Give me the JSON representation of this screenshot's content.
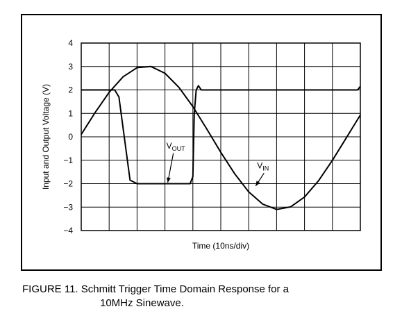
{
  "figure": {
    "caption_line1": "FIGURE 11. Schmitt Trigger Time Domain Response for a",
    "caption_line2": "10MHz Sinewave."
  },
  "chart_data": {
    "type": "line",
    "xlabel": "Time (10ns/div)",
    "ylabel": "Input and Output Voltage (V)",
    "ylim": [
      -4,
      4
    ],
    "y_ticks": [
      "4",
      "3",
      "2",
      "1",
      "0",
      "−1",
      "−2",
      "−3",
      "−4"
    ],
    "x_divisions": 10,
    "grid": true,
    "series": [
      {
        "name": "VIN",
        "label_main": "V",
        "label_sub": "IN",
        "color": "#000000",
        "x": [
          0,
          0.5,
          1,
          1.5,
          2,
          2.5,
          3,
          3.5,
          4,
          4.5,
          5,
          5.5,
          6,
          6.5,
          7,
          7.5,
          8,
          8.5,
          9,
          9.5,
          10
        ],
        "y": [
          0.1,
          1.04,
          1.9,
          2.56,
          2.95,
          3.0,
          2.71,
          2.11,
          1.29,
          0.33,
          -0.66,
          -1.58,
          -2.35,
          -2.87,
          -3.1,
          -2.99,
          -2.57,
          -1.88,
          -1.0,
          -0.04,
          0.93
        ]
      },
      {
        "name": "VOUT",
        "label_main": "V",
        "label_sub": "OUT",
        "color": "#000000",
        "x": [
          0,
          1.2,
          1.35,
          1.75,
          2.0,
          3.9,
          4.0,
          4.05,
          4.12,
          4.2,
          4.3,
          9.9,
          10.0
        ],
        "y": [
          2.0,
          2.0,
          1.7,
          -1.85,
          -2.0,
          -2.0,
          -1.7,
          1.0,
          2.0,
          2.18,
          2.0,
          2.0,
          2.15
        ]
      }
    ]
  }
}
